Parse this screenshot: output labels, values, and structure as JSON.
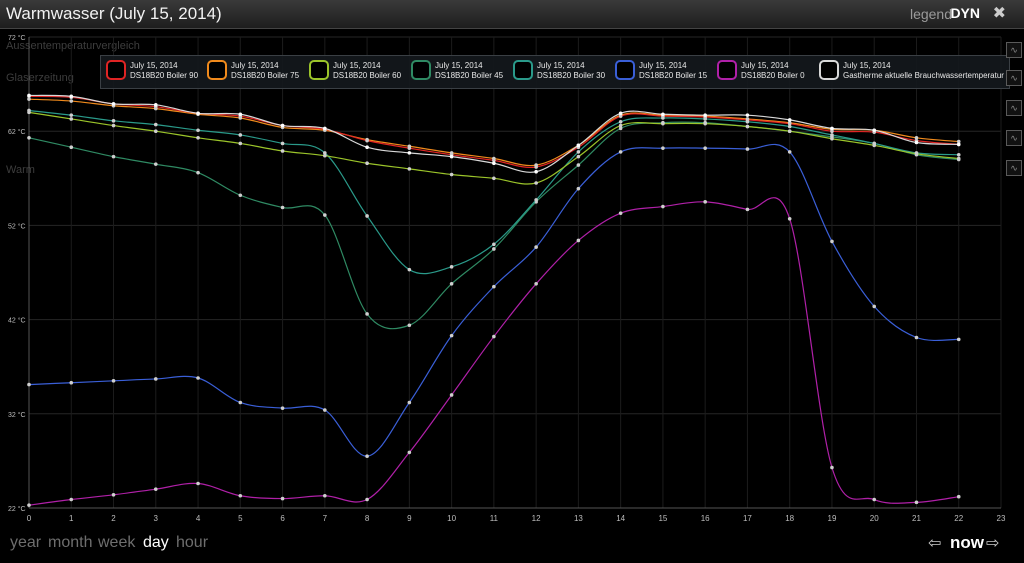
{
  "header": {
    "title": "Warmwasser (July 15, 2014)",
    "legend_label": "legend",
    "mode_label": "DYN"
  },
  "ghost_labels": [
    "Aussentemperaturvergleich",
    "Glaserzeitung",
    "Warm"
  ],
  "bottom": {
    "ranges": [
      "year",
      "month",
      "week",
      "day",
      "hour"
    ],
    "active_range": "day",
    "now_label": "now"
  },
  "colors": {
    "accent": "#ffffff",
    "background": "#000000"
  },
  "chart_data": {
    "type": "line",
    "title": "Warmwasser (July 15, 2014)",
    "xlabel": "",
    "ylabel": "",
    "x_ticks": [
      "0",
      "1",
      "2",
      "3",
      "4",
      "5",
      "6",
      "7",
      "8",
      "9",
      "10",
      "11",
      "12",
      "13",
      "14",
      "15",
      "16",
      "17",
      "18",
      "19",
      "20",
      "21",
      "22",
      "23"
    ],
    "y_ticks": [
      "22 °C",
      "32 °C",
      "42 °C",
      "52 °C",
      "62 °C",
      "72 °C"
    ],
    "xlim": [
      0,
      23
    ],
    "ylim": [
      22,
      72
    ],
    "grid": true,
    "legend_position": "top",
    "x": [
      0,
      1,
      2,
      3,
      4,
      5,
      6,
      7,
      8,
      9,
      10,
      11,
      12,
      13,
      14,
      15,
      16,
      17,
      18,
      19,
      20,
      21,
      22
    ],
    "series": [
      {
        "date": "July 15, 2014",
        "name": "DS18B20 Boiler 90",
        "color": "#e02424",
        "values": [
          65.7,
          65.6,
          64.9,
          64.6,
          63.9,
          63.6,
          62.6,
          62.2,
          61.0,
          60.2,
          59.5,
          58.9,
          58.2,
          60.3,
          63.6,
          63.6,
          63.5,
          63.2,
          62.8,
          62.0,
          61.9,
          61.0,
          60.6
        ]
      },
      {
        "date": "July 15, 2014",
        "name": "DS18B20 Boiler 75",
        "color": "#f08a1c",
        "values": [
          65.4,
          65.2,
          64.7,
          64.4,
          63.8,
          63.4,
          62.4,
          62.1,
          61.1,
          60.4,
          59.7,
          59.1,
          58.4,
          60.5,
          63.7,
          63.7,
          63.6,
          63.3,
          62.9,
          62.2,
          62.1,
          61.3,
          60.9
        ]
      },
      {
        "date": "July 15, 2014",
        "name": "DS18B20 Boiler 60",
        "color": "#9bc42a",
        "values": [
          64.0,
          63.3,
          62.6,
          62.0,
          61.3,
          60.7,
          59.9,
          59.4,
          58.6,
          58.0,
          57.4,
          57.0,
          56.5,
          59.3,
          62.6,
          62.8,
          62.8,
          62.5,
          62.0,
          61.2,
          60.5,
          59.6,
          59.1
        ]
      },
      {
        "date": "July 15, 2014",
        "name": "DS18B20 Boiler 45",
        "color": "#2f8a63",
        "values": [
          61.3,
          60.3,
          59.3,
          58.5,
          57.6,
          55.2,
          53.9,
          53.1,
          42.6,
          41.4,
          45.8,
          49.5,
          54.5,
          58.4,
          62.3,
          62.9,
          62.9,
          62.5,
          62.0,
          61.4,
          60.7,
          59.5,
          59.0
        ]
      },
      {
        "date": "July 15, 2014",
        "name": "DS18B20 Boiler 30",
        "color": "#2a9a8a",
        "values": [
          64.2,
          63.7,
          63.1,
          62.7,
          62.1,
          61.6,
          60.7,
          59.7,
          53.0,
          47.3,
          47.6,
          50.0,
          54.7,
          59.8,
          63.0,
          63.4,
          63.3,
          63.0,
          62.5,
          61.6,
          60.7,
          59.7,
          59.5
        ]
      },
      {
        "date": "July 15, 2014",
        "name": "DS18B20 Boiler 15",
        "color": "#3a5fd8",
        "values": [
          35.1,
          35.3,
          35.5,
          35.7,
          35.8,
          33.2,
          32.6,
          32.4,
          27.5,
          33.2,
          40.3,
          45.5,
          49.7,
          55.9,
          59.8,
          60.2,
          60.2,
          60.1,
          59.8,
          50.3,
          43.4,
          40.1,
          39.9
        ]
      },
      {
        "date": "July 15, 2014",
        "name": "DS18B20 Boiler 0",
        "color": "#b020a8",
        "values": [
          22.3,
          22.9,
          23.4,
          24.0,
          24.6,
          23.3,
          23.0,
          23.3,
          22.9,
          27.9,
          34.0,
          40.2,
          45.8,
          50.4,
          53.3,
          54.0,
          54.5,
          53.7,
          52.7,
          26.3,
          22.9,
          22.6,
          23.2
        ]
      },
      {
        "date": "July 15, 2014",
        "name": "Gastherme aktuelle Brauchwassertemperatur",
        "color": "#d8d8d8",
        "values": [
          65.8,
          65.7,
          64.9,
          64.8,
          63.9,
          63.8,
          62.6,
          62.3,
          60.3,
          59.7,
          59.3,
          58.6,
          57.7,
          60.5,
          63.9,
          63.8,
          63.7,
          63.7,
          63.2,
          62.3,
          62.1,
          60.8,
          60.6
        ]
      }
    ]
  }
}
